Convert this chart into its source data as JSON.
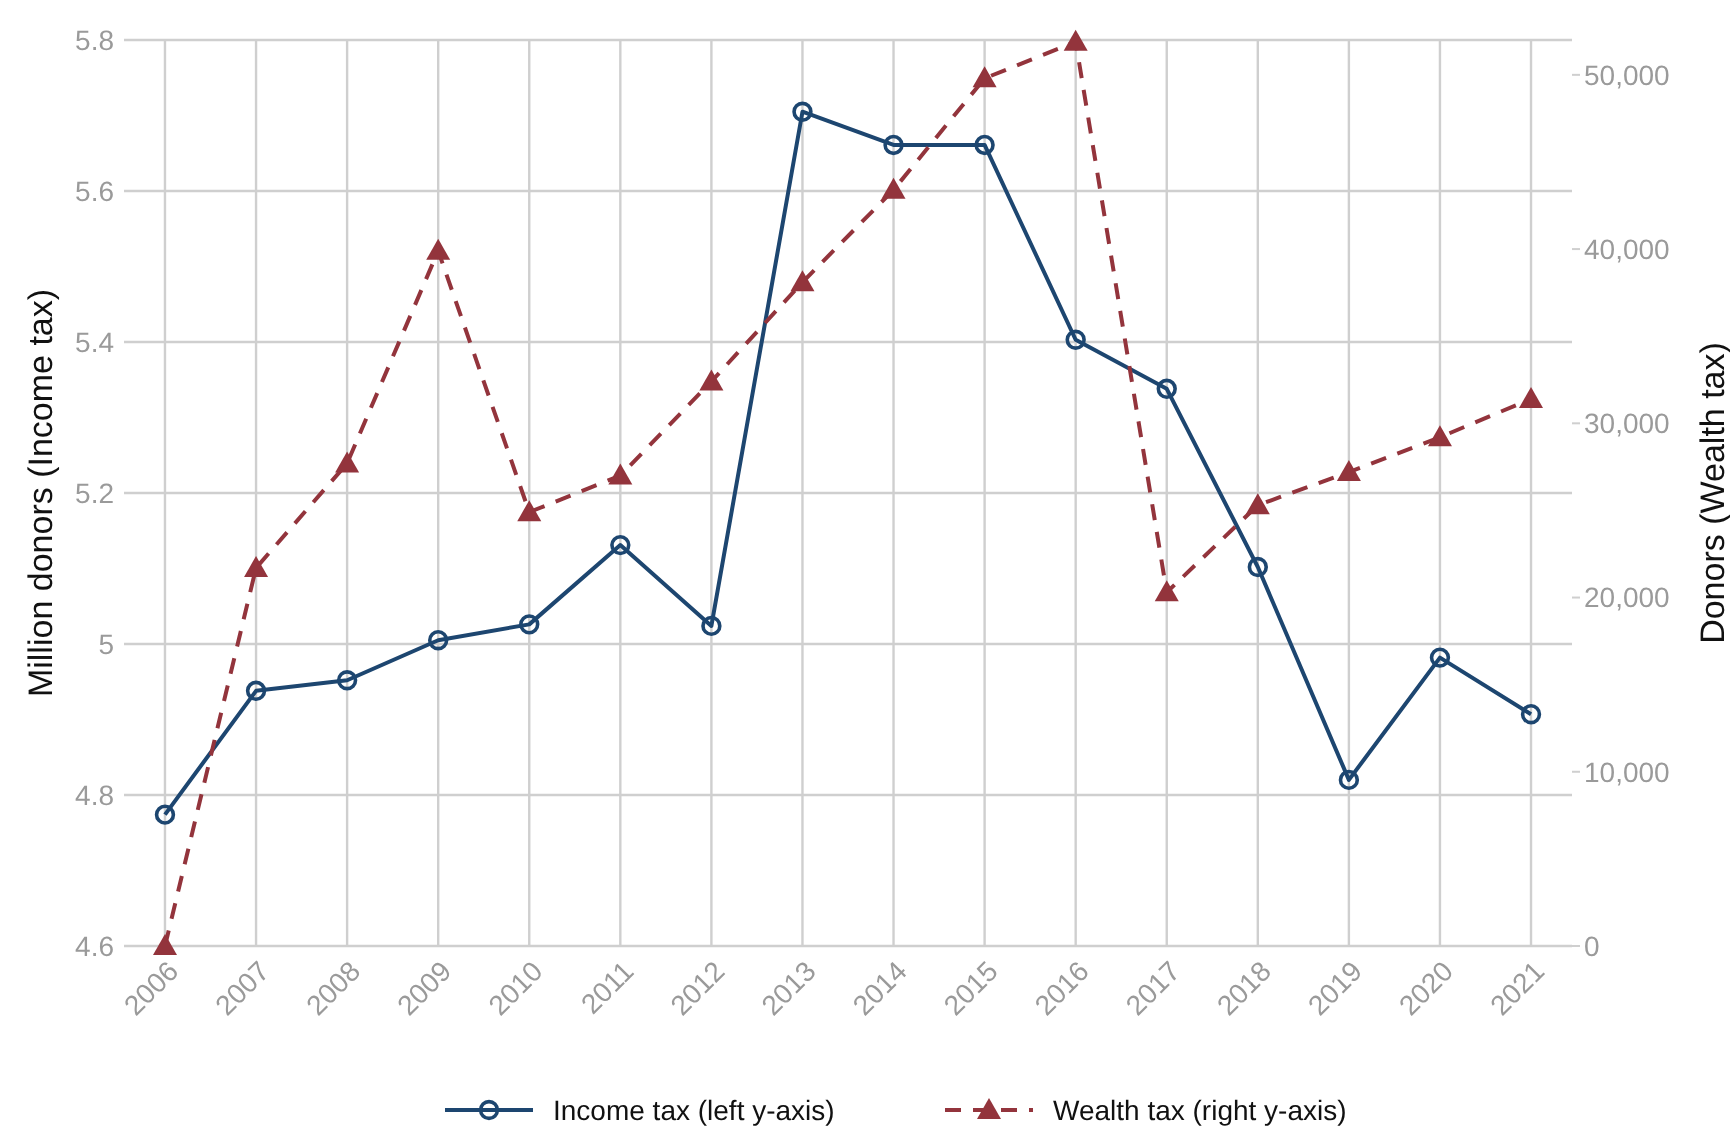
{
  "chart_data": {
    "type": "line",
    "categories": [
      "2006",
      "2007",
      "2008",
      "2009",
      "2010",
      "2011",
      "2012",
      "2013",
      "2014",
      "2015",
      "2016",
      "2017",
      "2018",
      "2019",
      "2020",
      "2021"
    ],
    "ylabel": "Million donors (Income tax)",
    "y2label": "Donors (Wealth tax)",
    "ylim": [
      4.6,
      5.8
    ],
    "yticks": [
      4.6,
      4.8,
      5,
      5.2,
      5.4,
      5.6,
      5.8
    ],
    "y2lim": [
      0,
      52000
    ],
    "y2ticks": [
      {
        "value": 0,
        "label": "0"
      },
      {
        "value": 10000,
        "label": "10,000"
      },
      {
        "value": 20000,
        "label": "20,000"
      },
      {
        "value": 30000,
        "label": "30,000"
      },
      {
        "value": 40000,
        "label": "40,000"
      },
      {
        "value": 50000,
        "label": "50,000"
      }
    ],
    "grid": true,
    "legend": "bottom",
    "series": [
      {
        "name": "Income tax (left y-axis)",
        "color": "#1d4670",
        "marker": "circle",
        "line_style": "solid",
        "values": [
          4.774,
          4.938,
          4.952,
          5.005,
          5.026,
          5.131,
          5.024,
          5.705,
          5.661,
          5.661,
          5.403,
          5.338,
          5.102,
          4.82,
          4.982,
          4.907
        ]
      },
      {
        "name": "Wealth tax (right y-axis)",
        "color": "#93343c",
        "marker": "triangle",
        "line_style": "dashed",
        "axis": "y2",
        "values": [
          0,
          21700,
          27700,
          39900,
          24900,
          27000,
          32400,
          38100,
          43400,
          49800,
          51900,
          20300,
          25300,
          27200,
          29200,
          31400
        ]
      }
    ]
  }
}
